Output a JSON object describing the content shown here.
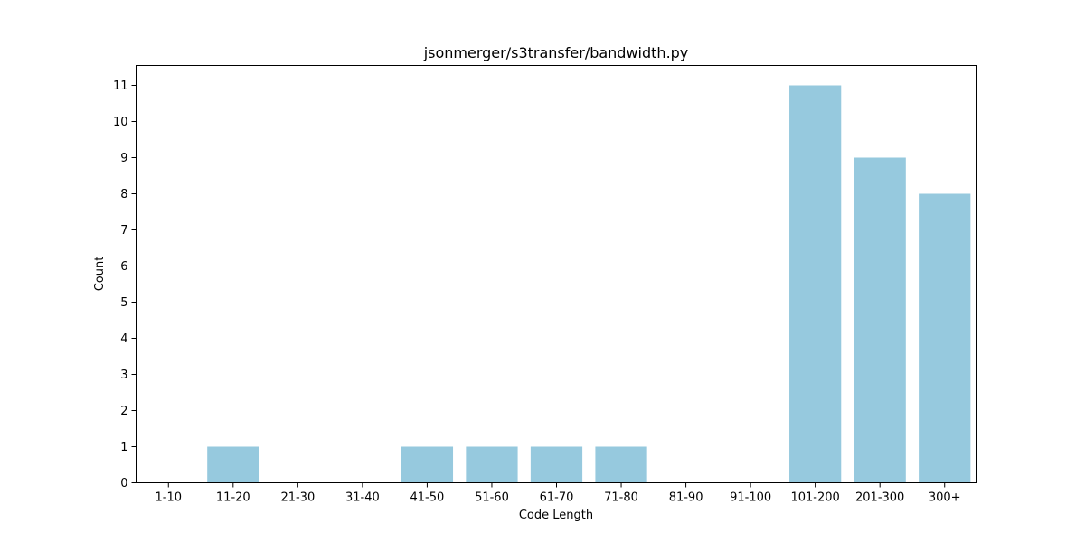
{
  "chart_data": {
    "type": "bar",
    "title": "jsonmerger/s3transfer/bandwidth.py",
    "xlabel": "Code Length",
    "ylabel": "Count",
    "categories": [
      "1-10",
      "11-20",
      "21-30",
      "31-40",
      "41-50",
      "51-60",
      "61-70",
      "71-80",
      "81-90",
      "91-100",
      "101-200",
      "201-300",
      "300+"
    ],
    "values": [
      0,
      1,
      0,
      0,
      1,
      1,
      1,
      1,
      0,
      0,
      11,
      9,
      8
    ],
    "ylim": [
      0,
      11.55
    ],
    "yticks": [
      0,
      1,
      2,
      3,
      4,
      5,
      6,
      7,
      8,
      9,
      10,
      11
    ],
    "grid": false,
    "bar_color": "#96c9de"
  }
}
